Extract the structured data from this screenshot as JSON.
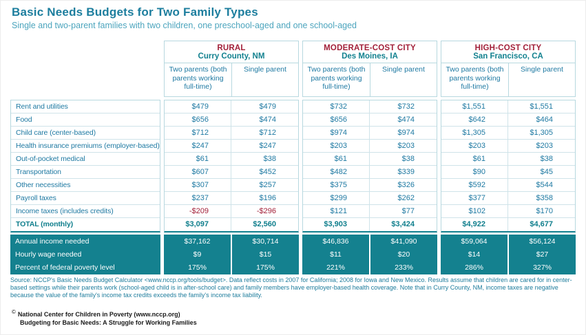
{
  "page": {
    "title": "Basic Needs Budgets for Two Family Types",
    "subtitle": "Single and two-parent families with two children, one preschool-aged and one school-aged"
  },
  "colors": {
    "teal_band": "#14818f",
    "teal_heading": "#12818f",
    "body_text": "#1e79a2",
    "maroon": "#a22039",
    "light_border": "#b7d8df",
    "total_text": "#0e7e8c"
  },
  "table": {
    "groups": [
      {
        "type": "RURAL",
        "location": "Curry County, NM"
      },
      {
        "type": "MODERATE-COST CITY",
        "location": "Des Moines, IA"
      },
      {
        "type": "HIGH-COST CITY",
        "location": "San Francisco, CA"
      }
    ],
    "subheaders": [
      "Two parents (both parents working full-time)",
      "Single parent"
    ],
    "rows": [
      {
        "label": "Rent and utilities",
        "values": [
          "$479",
          "$479",
          "$732",
          "$732",
          "$1,551",
          "$1,551"
        ]
      },
      {
        "label": "Food",
        "values": [
          "$656",
          "$474",
          "$656",
          "$474",
          "$642",
          "$464"
        ]
      },
      {
        "label": "Child care (center-based)",
        "values": [
          "$712",
          "$712",
          "$974",
          "$974",
          "$1,305",
          "$1,305"
        ]
      },
      {
        "label": "Health insurance premiums (employer-based)",
        "values": [
          "$247",
          "$247",
          "$203",
          "$203",
          "$203",
          "$203"
        ]
      },
      {
        "label": "Out-of-pocket medical",
        "values": [
          "$61",
          "$38",
          "$61",
          "$38",
          "$61",
          "$38"
        ]
      },
      {
        "label": "Transportation",
        "values": [
          "$607",
          "$452",
          "$482",
          "$339",
          "$90",
          "$45"
        ]
      },
      {
        "label": "Other necessities",
        "values": [
          "$307",
          "$257",
          "$375",
          "$326",
          "$592",
          "$544"
        ]
      },
      {
        "label": "Payroll taxes",
        "values": [
          "$237",
          "$196",
          "$299",
          "$262",
          "$377",
          "$358"
        ]
      },
      {
        "label": "Income taxes (includes credits)",
        "values": [
          "-$209",
          "-$296",
          "$121",
          "$77",
          "$102",
          "$170"
        ]
      },
      {
        "label": "TOTAL (monthly)",
        "values": [
          "$3,097",
          "$2,560",
          "$3,903",
          "$3,424",
          "$4,922",
          "$4,677"
        ],
        "total": true
      }
    ],
    "summary_rows": [
      {
        "label": "Annual income needed",
        "values": [
          "$37,162",
          "$30,714",
          "$46,836",
          "$41,090",
          "$59,064",
          "$56,124"
        ]
      },
      {
        "label": "Hourly wage needed",
        "values": [
          "$9",
          "$15",
          "$11",
          "$20",
          "$14",
          "$27"
        ]
      },
      {
        "label": "Percent of federal poverty level",
        "values": [
          "175%",
          "175%",
          "221%",
          "233%",
          "286%",
          "327%"
        ]
      }
    ]
  },
  "footer": {
    "source": "Source: NCCP's Basic Needs Budget Calculator <www.nccp.org/tools/budget>. Data reflect costs in 2007 for California; 2008 for Iowa and New Mexico. Results assume that children are cared for in center-based settings while their parents work (school-aged child is in after-school care) and family members have employer-based health coverage. Note that in Curry County, NM, income taxes are negative because the value of the family's income tax credits exceeds the family's income tax liability.",
    "copyright_symbol": "©",
    "copyright_line1": "National Center for Children in Poverty (www.nccp.org)",
    "copyright_line2": "Budgeting for Basic Needs: A Struggle for Working Families"
  }
}
